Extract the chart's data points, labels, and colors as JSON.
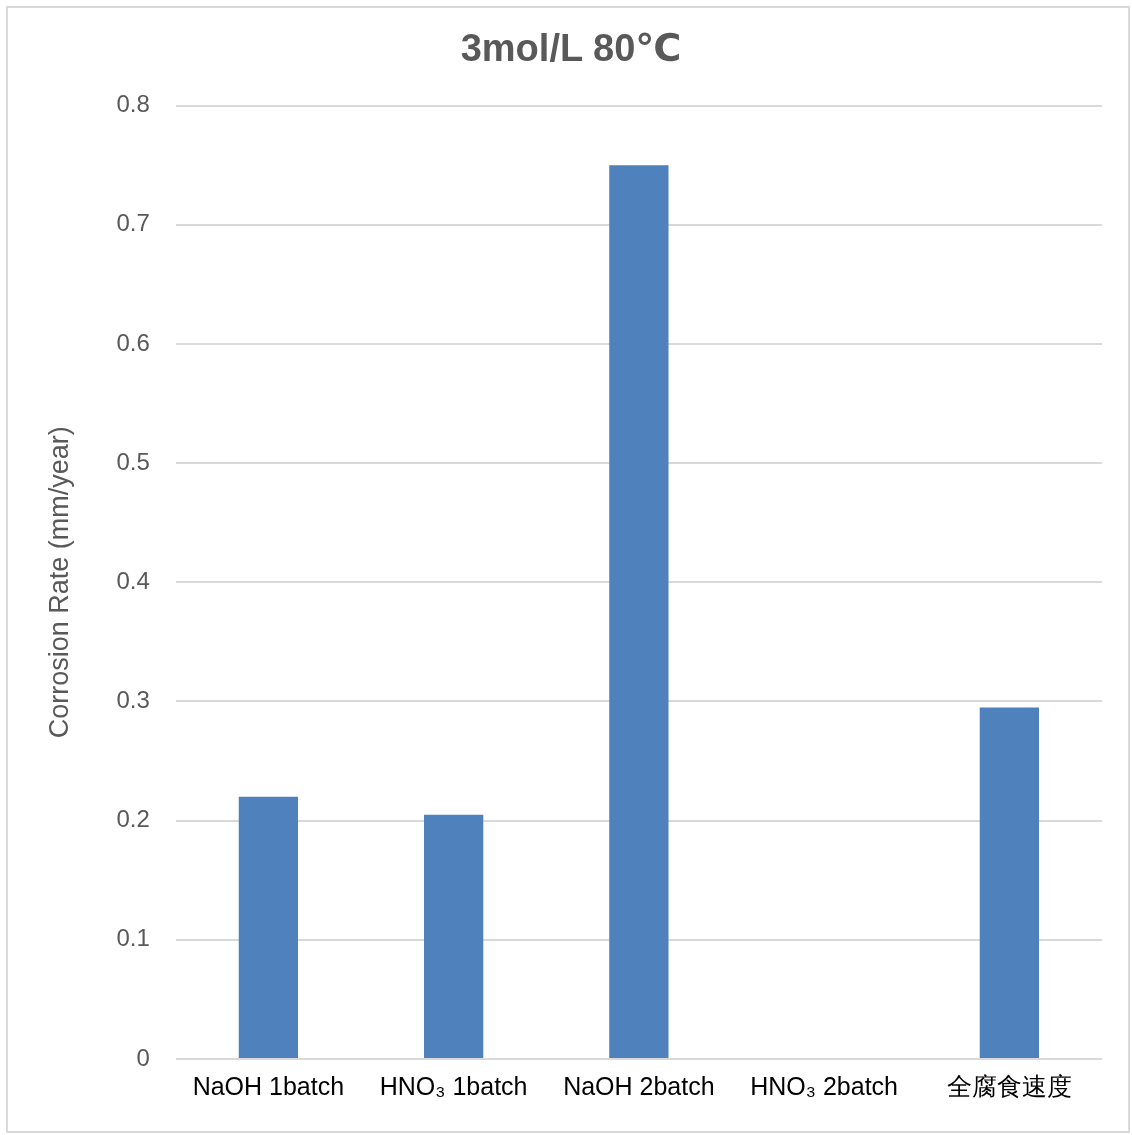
{
  "chart_data": {
    "type": "bar",
    "title": "3mol/L 80℃",
    "ylabel": "Corrosion Rate (mm/year)",
    "categories": [
      "NaOH 1batch",
      "HNO₃ 1batch",
      "NaOH 2batch",
      "HNO₃ 2batch",
      "全腐食速度"
    ],
    "values": [
      0.22,
      0.205,
      0.75,
      0,
      0.295
    ],
    "color": "#4f81bd",
    "ylim": [
      0,
      0.8
    ],
    "yticks": [
      0,
      0.1,
      0.2,
      0.3,
      0.4,
      0.5,
      0.6,
      0.7,
      0.8
    ],
    "grid": "y",
    "legend": false
  }
}
